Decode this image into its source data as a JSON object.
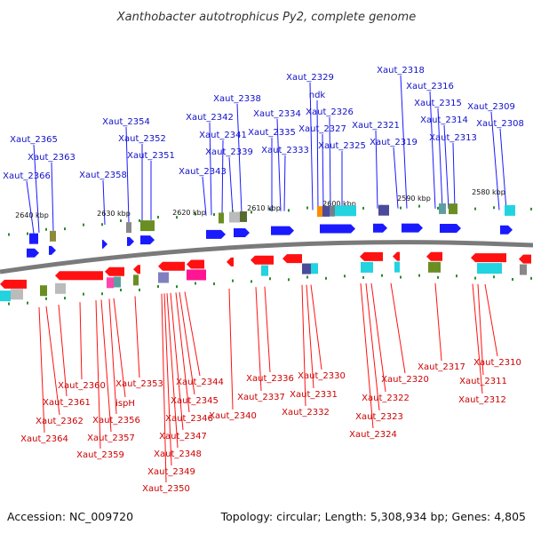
{
  "title": "Xanthobacter autotrophicus Py2, complete genome",
  "footer": {
    "accession": "Accession: NC_009720",
    "summary": "Topology: circular; Length: 5,308,934 bp; Genes: 4,805"
  },
  "colors": {
    "forward": "#1a1aff",
    "reverse": "#ff1111",
    "forward_label": "#1010c8",
    "reverse_label": "#cc0000",
    "backbone": "#7a7a7a",
    "marker": "#2e8b2e"
  },
  "ticks": [
    "2640 kbp",
    "2630 kbp",
    "2620 kbp",
    "2610 kbp",
    "2600 kbp",
    "2590 kbp",
    "2580 kbp"
  ],
  "forward_genes": [
    "Xaut_2366",
    "Xaut_2365",
    "Xaut_2363",
    "Xaut_2358",
    "Xaut_2354",
    "Xaut_2352",
    "Xaut_2351",
    "Xaut_2343",
    "Xaut_2342",
    "Xaut_2341",
    "Xaut_2339",
    "Xaut_2338",
    "Xaut_2335",
    "Xaut_2334",
    "Xaut_2333",
    "Xaut_2329",
    "ndk",
    "Xaut_2327",
    "Xaut_2326",
    "Xaut_2325",
    "Xaut_2321",
    "Xaut_2319",
    "Xaut_2318",
    "Xaut_2316",
    "Xaut_2315",
    "Xaut_2314",
    "Xaut_2313",
    "Xaut_2309",
    "Xaut_2308"
  ],
  "reverse_genes": [
    "Xaut_2364",
    "Xaut_2362",
    "Xaut_2361",
    "Xaut_2360",
    "Xaut_2359",
    "Xaut_2357",
    "Xaut_2356",
    "ispH",
    "Xaut_2353",
    "Xaut_2350",
    "Xaut_2349",
    "Xaut_2348",
    "Xaut_2347",
    "Xaut_2346",
    "Xaut_2345",
    "Xaut_2344",
    "Xaut_2340",
    "Xaut_2337",
    "Xaut_2336",
    "Xaut_2332",
    "Xaut_2331",
    "Xaut_2330",
    "Xaut_2324",
    "Xaut_2323",
    "Xaut_2322",
    "Xaut_2320",
    "Xaut_2317",
    "Xaut_2312",
    "Xaut_2311",
    "Xaut_2310"
  ]
}
